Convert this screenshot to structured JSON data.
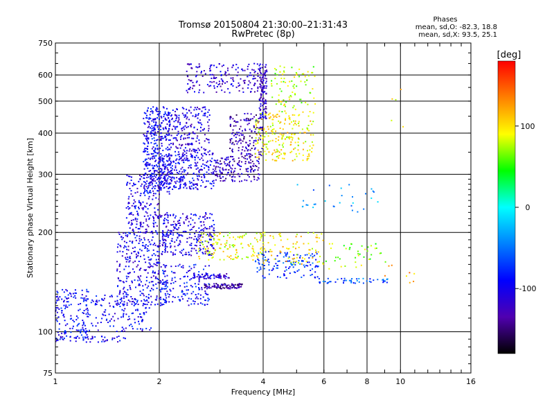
{
  "chart_data": {
    "type": "scatter",
    "title": "Tromsø 20150804 21:30:00–21:31:43",
    "subtitle": "RwPretec (8p)",
    "xlabel": "Frequency [MHz]",
    "ylabel": "Stationary phase Virtual Height [km]",
    "x_scale": "log",
    "y_scale": "log",
    "xlim": [
      1,
      16
    ],
    "ylim": [
      75,
      750
    ],
    "x_ticks": [
      1,
      2,
      4,
      6,
      8,
      10,
      16
    ],
    "y_ticks": [
      75,
      100,
      200,
      300,
      400,
      500,
      600,
      750
    ],
    "grid": true,
    "phases": {
      "heading": "Phases",
      "line_o": "mean, sd,O: -82.3, 18.8",
      "line_x": "mean, sd,X:  93.5, 25.1"
    },
    "colorbar": {
      "label": "[deg]",
      "range": [
        -180,
        180
      ],
      "ticks": [
        100,
        0,
        -100
      ],
      "colors": [
        "#ff0000",
        "#ff8000",
        "#ffff00",
        "#00ff00",
        "#00ffff",
        "#0080ff",
        "#0000ff",
        "#5000b0",
        "#000000"
      ]
    },
    "clusters": [
      {
        "f": [
          1.0,
          1.25
        ],
        "h": [
          95,
          135
        ],
        "phase": -90,
        "n": 140
      },
      {
        "f": [
          1.0,
          1.6
        ],
        "h": [
          93,
          97
        ],
        "phase": -100,
        "n": 45
      },
      {
        "f": [
          1.2,
          1.9
        ],
        "h": [
          100,
          130
        ],
        "phase": -95,
        "n": 160
      },
      {
        "f": [
          1.5,
          2.1
        ],
        "h": [
          120,
          200
        ],
        "phase": -100,
        "n": 320
      },
      {
        "f": [
          1.6,
          2.0
        ],
        "h": [
          200,
          300
        ],
        "phase": -105,
        "n": 180
      },
      {
        "f": [
          1.8,
          2.15
        ],
        "h": [
          260,
          480
        ],
        "phase": -95,
        "n": 380
      },
      {
        "f": [
          2.0,
          2.8
        ],
        "h": [
          120,
          160
        ],
        "phase": -90,
        "n": 160
      },
      {
        "f": [
          2.0,
          2.9
        ],
        "h": [
          170,
          230
        ],
        "phase": -105,
        "n": 260
      },
      {
        "f": [
          2.0,
          2.9
        ],
        "h": [
          270,
          350
        ],
        "phase": -100,
        "n": 300
      },
      {
        "f": [
          2.1,
          2.8
        ],
        "h": [
          350,
          480
        ],
        "phase": -110,
        "n": 200
      },
      {
        "f": [
          2.4,
          3.9
        ],
        "h": [
          530,
          650
        ],
        "phase": -115,
        "n": 170
      },
      {
        "f": [
          2.9,
          3.9
        ],
        "h": [
          285,
          340
        ],
        "phase": -125,
        "n": 160
      },
      {
        "f": [
          3.2,
          4.0
        ],
        "h": [
          340,
          460
        ],
        "phase": -130,
        "n": 150
      },
      {
        "f": [
          3.9,
          4.1
        ],
        "h": [
          440,
          650
        ],
        "phase": -120,
        "n": 120
      },
      {
        "f": [
          3.8,
          5.6
        ],
        "h": [
          330,
          460
        ],
        "phase": 95,
        "n": 220
      },
      {
        "f": [
          4.2,
          5.7
        ],
        "h": [
          460,
          640
        ],
        "phase": 80,
        "n": 90
      },
      {
        "f": [
          2.6,
          4.0
        ],
        "h": [
          165,
          200
        ],
        "phase": 90,
        "n": 130
      },
      {
        "f": [
          2.7,
          3.5
        ],
        "h": [
          135,
          140
        ],
        "phase": -130,
        "n": 90
      },
      {
        "f": [
          2.5,
          3.2
        ],
        "h": [
          145,
          150
        ],
        "phase": -110,
        "n": 60
      },
      {
        "f": [
          3.8,
          5.8
        ],
        "h": [
          145,
          175
        ],
        "phase": -70,
        "n": 130
      },
      {
        "f": [
          4.0,
          6.0
        ],
        "h": [
          160,
          200
        ],
        "phase": 100,
        "n": 80
      },
      {
        "f": [
          5.8,
          9.2
        ],
        "h": [
          140,
          145
        ],
        "phase": -60,
        "n": 50
      },
      {
        "f": [
          6.0,
          9.5
        ],
        "h": [
          155,
          185
        ],
        "phase": 70,
        "n": 40
      },
      {
        "f": [
          4.8,
          8.8
        ],
        "h": [
          230,
          280
        ],
        "phase": -40,
        "n": 30
      },
      {
        "f": [
          9.0,
          11.0
        ],
        "h": [
          140,
          160
        ],
        "phase": 120,
        "n": 8
      },
      {
        "f": [
          9.3,
          10.2
        ],
        "h": [
          400,
          560
        ],
        "phase": 100,
        "n": 5
      }
    ]
  }
}
